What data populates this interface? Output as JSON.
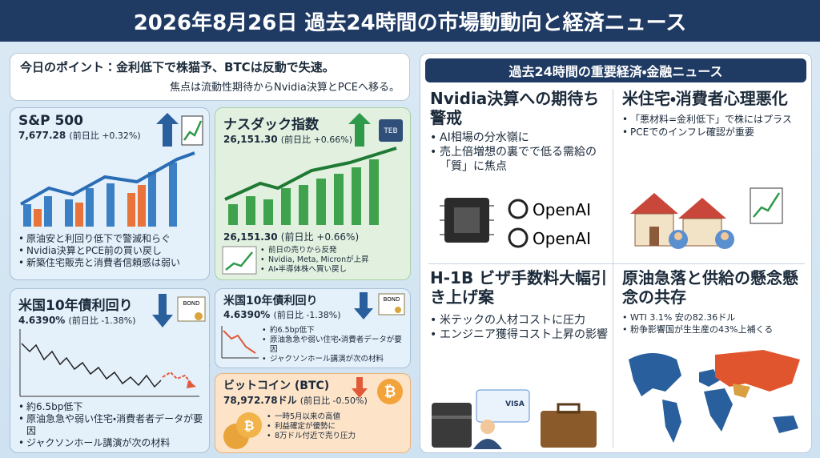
{
  "header": {
    "title": "2026年8月26日 過去24時間の市場動動向と経済ニュース"
  },
  "point": {
    "label": "今日のポイント：",
    "lines": [
      "金利低下で株猫予、BTCは反動で失速。",
      "焦点は流動性期待からNvidia決算とPCEへ移る。"
    ]
  },
  "sp500": {
    "title": "S&P 500",
    "value": "7,677.28",
    "change": "(前日比 +0.32%)",
    "bullets": [
      "原油安と利回り低下で警滅和らぐ",
      "Nvidia決算とPCE前の買い戻し",
      "新築住宅販売と消費者信頼感は弱い"
    ]
  },
  "nasdaq": {
    "title": "ナスダック指数",
    "value": "26,151.30",
    "change": "(前日比 +0.66%)",
    "chip": "TEB",
    "sub_value": "26,151.30",
    "sub_change": "(前日比 +0.66%)",
    "bullets": [
      "前日の売りから反発",
      "Nvidia, Meta, Micronが上昇",
      "AI・半導体株へ買い戻し"
    ]
  },
  "bond_main": {
    "title": "米国10年債利回り",
    "value": "4.6390%",
    "change": "(前日比 -1.38%)",
    "icon": "BOND",
    "bullets": [
      "約6.5bp低下",
      "原油急急や弱い住宅・消費者者データが要因",
      "ジャクソンホール講演が次の材料"
    ]
  },
  "bond_small": {
    "title": "米国10年債利回り",
    "value": "4.6390%",
    "change": "(前日比 -1.38%)",
    "icon": "BOND",
    "bullets": [
      "約6.5bp低下",
      "原油急急や弱い住宅・消費者データが要因",
      "ジャクソンホール講演が次の材料"
    ]
  },
  "btc": {
    "title": "ビットコイン (BTC)",
    "value": "78,972.78ドル",
    "change": "(前日比 -0.50%)",
    "bullets": [
      "一時5月以来の高値",
      "利益確定が優勢に",
      "8万ドル付近で売り圧力"
    ]
  },
  "news": {
    "title": "過去24時間の重要経済・金融ニュース",
    "items": [
      {
        "title": "Nvidia決算への期待ち警戒",
        "bullets": [
          "AI相場の分水嶺に",
          "売上倍増想の裏でで低る需給の「質」に焦点"
        ],
        "logos": [
          "OpenAI",
          "OpenAI"
        ]
      },
      {
        "title": "米住宅・消費者心理悪化",
        "bullets": [
          "「悪材料=金利低下」で株にはプラス",
          "PCEでのインフレ確認が重要"
        ]
      },
      {
        "title": "H-1B ビザ手数料大幅引き上げ案",
        "bullets": [
          "米テックの人材コストに圧力",
          "エンジニア獲得コスト上昇の影響"
        ],
        "card": "VISA"
      },
      {
        "title": "原油急落と供給の懸念懸念の共存",
        "bullets": [
          "WTI 3.1% 安の82.36ドル",
          "粉争影響国が生生産の43%上補くる"
        ]
      }
    ]
  }
}
